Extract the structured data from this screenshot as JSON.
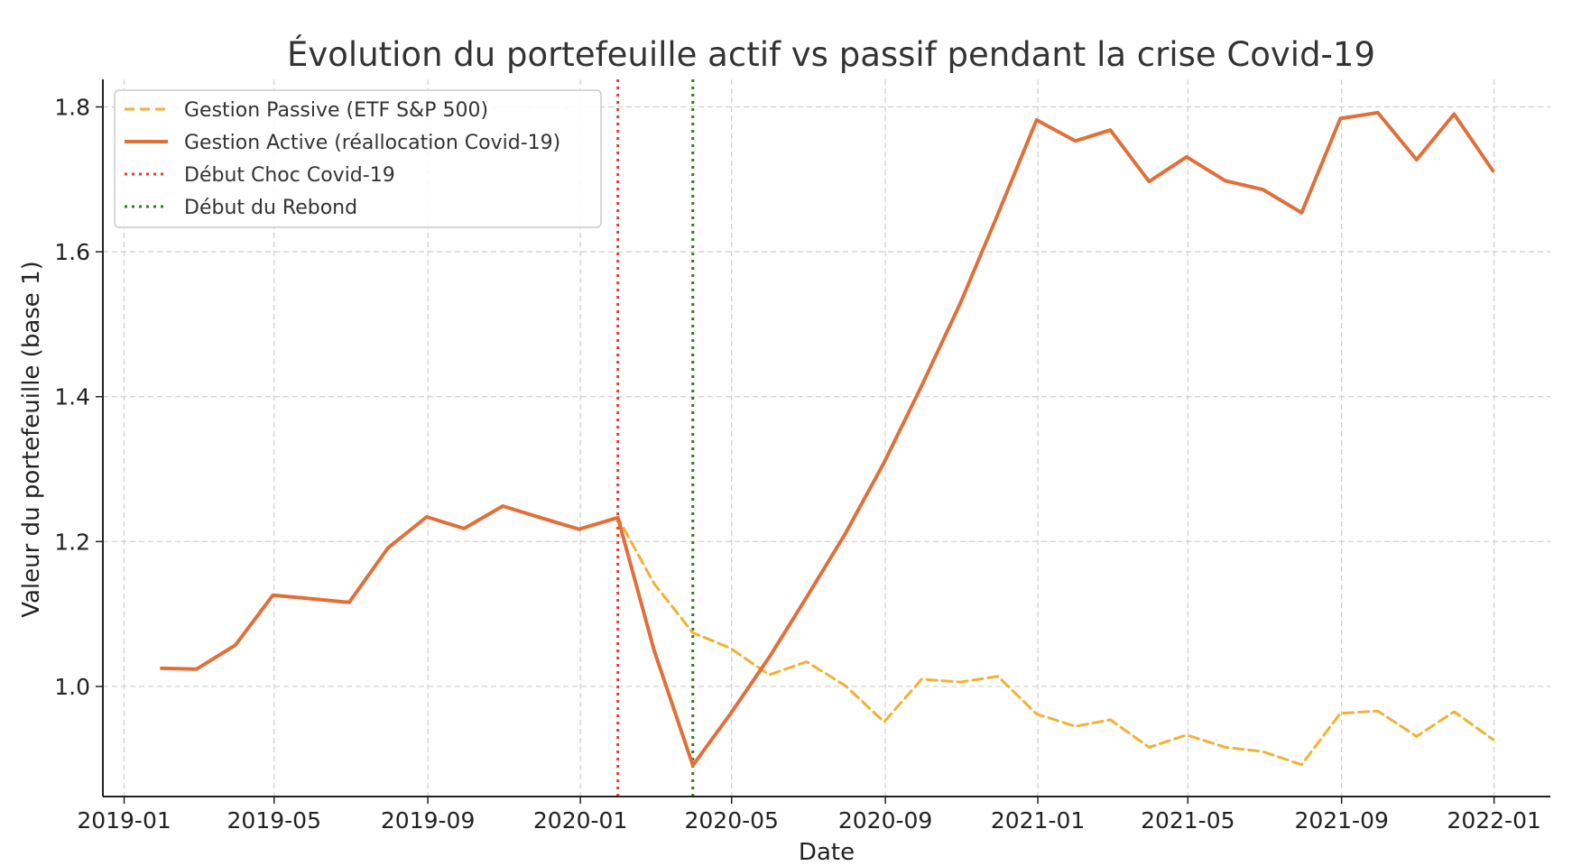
{
  "chart_data": {
    "type": "line",
    "title": "Évolution du portefeuille actif vs passif pendant la crise Covid-19",
    "xlabel": "Date",
    "ylabel": "Valeur du portefeuille (base 1)",
    "x_ticks": [
      "2019-01",
      "2019-05",
      "2019-09",
      "2020-01",
      "2020-05",
      "2020-09",
      "2021-01",
      "2021-05",
      "2021-09",
      "2022-01"
    ],
    "y_ticks": [
      "1.0",
      "1.2",
      "1.4",
      "1.6",
      "1.8"
    ],
    "xlim": [
      "2018-12-15",
      "2022-02-15"
    ],
    "ylim": [
      0.848,
      1.838
    ],
    "grid": true,
    "legend_position": "top-left",
    "x": [
      "2019-01-31",
      "2019-02-28",
      "2019-03-31",
      "2019-04-30",
      "2019-05-31",
      "2019-06-30",
      "2019-07-31",
      "2019-08-31",
      "2019-09-30",
      "2019-10-31",
      "2019-11-30",
      "2019-12-31",
      "2020-01-31",
      "2020-02-29",
      "2020-03-31",
      "2020-04-30",
      "2020-05-31",
      "2020-06-30",
      "2020-07-31",
      "2020-08-31",
      "2020-09-30",
      "2020-10-31",
      "2020-11-30",
      "2020-12-31",
      "2021-01-31",
      "2021-02-28",
      "2021-03-31",
      "2021-04-30",
      "2021-05-31",
      "2021-06-30",
      "2021-07-31",
      "2021-08-31",
      "2021-09-30",
      "2021-10-31",
      "2021-11-30",
      "2021-12-31"
    ],
    "series": [
      {
        "name": "Gestion Passive (ETF S&P 500)",
        "color": "#f2b134",
        "style": "dashed",
        "values": [
          1.025,
          1.024,
          1.057,
          1.126,
          1.121,
          1.116,
          1.191,
          1.234,
          1.218,
          1.249,
          1.233,
          1.217,
          1.233,
          1.142,
          1.074,
          1.053,
          1.016,
          1.034,
          1.001,
          0.951,
          1.01,
          1.006,
          1.014,
          0.962,
          0.945,
          0.954,
          0.916,
          0.933,
          0.916,
          0.91,
          0.892,
          0.963,
          0.966,
          0.931,
          0.965,
          0.927
        ]
      },
      {
        "name": "Gestion Active (réallocation Covid-19)",
        "color": "#e0703a",
        "style": "solid",
        "values": [
          1.025,
          1.024,
          1.057,
          1.126,
          1.121,
          1.116,
          1.191,
          1.234,
          1.218,
          1.249,
          1.233,
          1.217,
          1.233,
          1.05,
          0.891,
          0.962,
          1.04,
          1.123,
          1.211,
          1.309,
          1.415,
          1.529,
          1.652,
          1.782,
          1.753,
          1.768,
          1.697,
          1.731,
          1.698,
          1.686,
          1.654,
          1.784,
          1.792,
          1.727,
          1.79,
          1.712
        ]
      }
    ],
    "vlines": [
      {
        "name": "Début Choc Covid-19",
        "x": "2020-01-31",
        "color": "#e83a2f",
        "style": "dotted"
      },
      {
        "name": "Début du Rebond",
        "x": "2020-03-31",
        "color": "#2f7d1f",
        "style": "dotted"
      }
    ]
  }
}
